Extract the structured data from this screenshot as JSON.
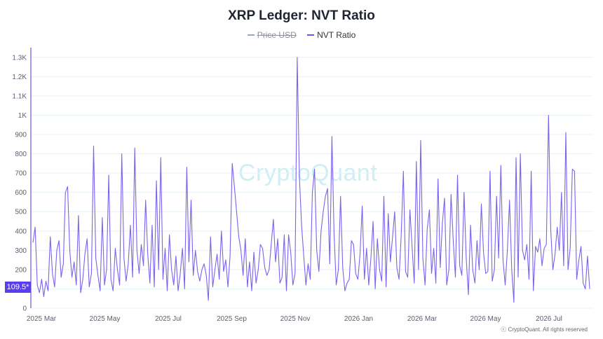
{
  "title": "XRP Ledger: NVT Ratio",
  "legend": [
    {
      "label": "Price USD",
      "color": "#9aa6c8",
      "hidden": true
    },
    {
      "label": "NVT Ratio",
      "color": "#6f55e6",
      "hidden": false
    }
  ],
  "watermark": "CryptoQuant",
  "copyright": "ⓒ CryptoQuant. All rights reserved",
  "cursor_value": "109.5*",
  "colors": {
    "line": "#7b63ee",
    "accent": "#5b3cf0",
    "grid": "#e6f3f7"
  },
  "chart_data": {
    "type": "line",
    "title": "XRP Ledger: NVT Ratio",
    "ylim": [
      0,
      1350
    ],
    "y_ticks": [
      0,
      100,
      200,
      300,
      400,
      500,
      600,
      700,
      800,
      900,
      1000,
      1100,
      1200,
      1300
    ],
    "y_tick_labels": [
      "0",
      "100",
      "200",
      "300",
      "400",
      "500",
      "600",
      "700",
      "800",
      "900",
      "1K",
      "1.1K",
      "1.2K",
      "1.3K"
    ],
    "x_tick_labels": [
      "2025 Mar",
      "2025 May",
      "2025 Jul",
      "2025 Sep",
      "2025 Nov",
      "2026 Jan",
      "2026 Mar",
      "2026 May",
      "2026 Jul"
    ],
    "grid": true,
    "legend_position": "top-center",
    "series": [
      {
        "name": "NVT Ratio",
        "values": [
          340,
          420,
          120,
          80,
          150,
          60,
          140,
          90,
          370,
          180,
          110,
          300,
          350,
          160,
          230,
          600,
          630,
          300,
          160,
          240,
          120,
          480,
          80,
          150,
          280,
          360,
          110,
          180,
          840,
          260,
          170,
          90,
          470,
          120,
          200,
          690,
          150,
          90,
          310,
          200,
          120,
          800,
          260,
          140,
          230,
          430,
          160,
          830,
          300,
          180,
          330,
          220,
          560,
          280,
          130,
          430,
          110,
          660,
          200,
          780,
          150,
          310,
          90,
          380,
          200,
          120,
          270,
          90,
          180,
          310,
          100,
          730,
          240,
          560,
          170,
          300,
          190,
          140,
          200,
          230,
          170,
          40,
          370,
          110,
          200,
          280,
          150,
          400,
          190,
          250,
          110,
          270,
          750,
          630,
          500,
          370,
          300,
          170,
          360,
          110,
          240,
          90,
          290,
          130,
          200,
          330,
          310,
          210,
          170,
          200,
          330,
          460,
          240,
          360,
          130,
          160,
          380,
          90,
          380,
          290,
          120,
          180,
          1300,
          680,
          430,
          270,
          120,
          230,
          150,
          600,
          720,
          300,
          190,
          400,
          500,
          580,
          620,
          230,
          890,
          390,
          120,
          200,
          580,
          210,
          90,
          130,
          150,
          350,
          330,
          180,
          150,
          280,
          530,
          150,
          310,
          120,
          260,
          450,
          100,
          360,
          200,
          140,
          580,
          110,
          490,
          240,
          370,
          500,
          210,
          150,
          380,
          710,
          190,
          160,
          510,
          320,
          130,
          760,
          200,
          870,
          260,
          120,
          410,
          510,
          180,
          310,
          130,
          670,
          210,
          440,
          570,
          120,
          200,
          590,
          350,
          160,
          690,
          220,
          170,
          600,
          260,
          70,
          430,
          200,
          130,
          350,
          200,
          540,
          290,
          180,
          190,
          710,
          140,
          200,
          580,
          260,
          740,
          250,
          120,
          300,
          560,
          200,
          30,
          780,
          160,
          800,
          300,
          250,
          330,
          150,
          710,
          90,
          320,
          290,
          360,
          220,
          310,
          330,
          1000,
          410,
          200,
          280,
          420,
          300,
          600,
          220,
          910,
          200,
          310,
          720,
          710,
          150,
          250,
          320,
          130,
          100,
          270,
          100
        ]
      }
    ]
  }
}
